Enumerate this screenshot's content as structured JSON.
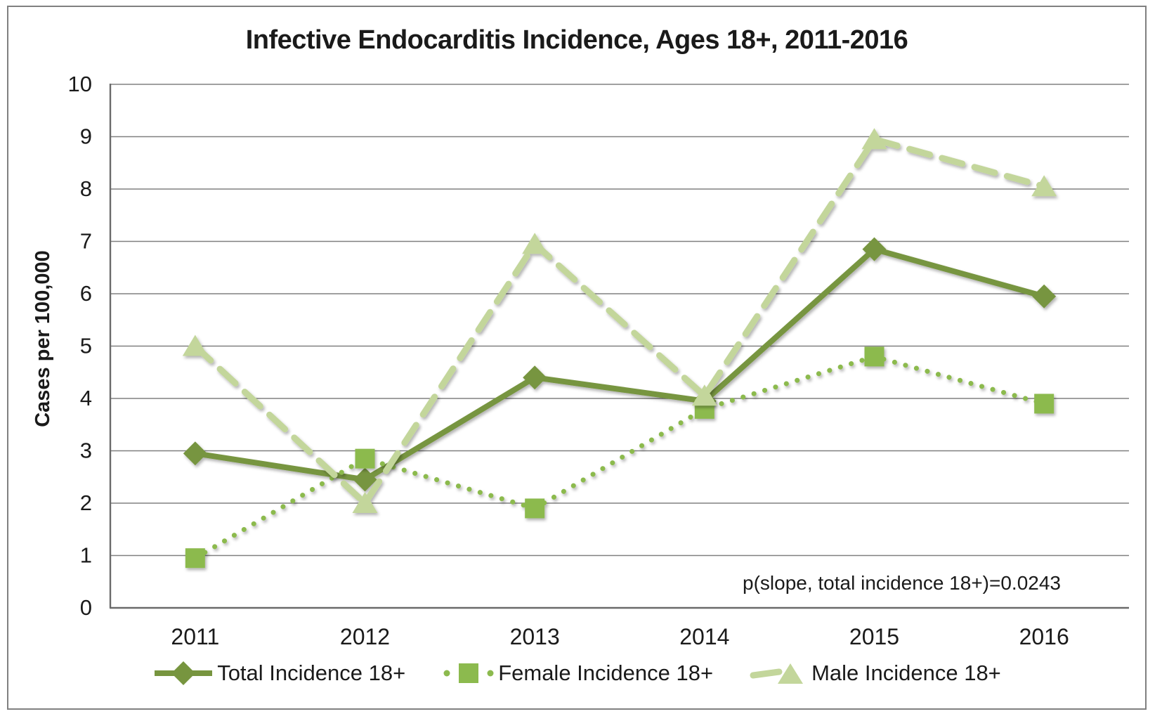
{
  "figure": {
    "title": "Infective Endocarditis Incidence, Ages 18+, 2011-2016",
    "annotation": "p(slope, total incidence 18+)=0.0243"
  },
  "chart_data": {
    "type": "line",
    "title": "Infective Endocarditis Incidence, Ages 18+, 2011-2016",
    "xlabel": "",
    "ylabel": "Cases per 100,000",
    "categories": [
      "2011",
      "2012",
      "2013",
      "2014",
      "2015",
      "2016"
    ],
    "ylim": [
      0,
      10
    ],
    "ytick_step": 1,
    "grid": "horizontal",
    "legend_position": "bottom",
    "annotation": "p(slope, total incidence 18+)=0.0243",
    "series": [
      {
        "name": "Total Incidence 18+",
        "values": [
          2.95,
          2.45,
          4.4,
          3.95,
          6.85,
          5.95
        ],
        "color": "#77953F",
        "line_style": "solid",
        "marker": "diamond"
      },
      {
        "name": "Female Incidence 18+",
        "values": [
          0.95,
          2.85,
          1.9,
          3.8,
          4.8,
          3.9
        ],
        "color": "#8CBA4E",
        "line_style": "dotted",
        "marker": "square"
      },
      {
        "name": "Male Incidence 18+",
        "values": [
          5.0,
          2.0,
          6.95,
          4.05,
          8.95,
          8.05
        ],
        "color": "#C3D69B",
        "line_style": "dashed",
        "marker": "triangle"
      }
    ],
    "colors": {
      "gridline": "#808080",
      "axis": "#6a6a6a",
      "text": "#1a1a1a",
      "border": "#808080",
      "background": "#ffffff"
    }
  }
}
